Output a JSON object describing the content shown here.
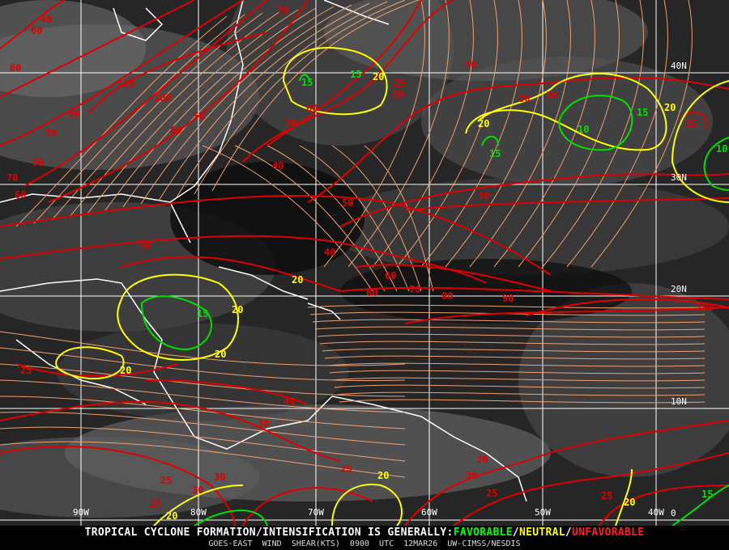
{
  "product": {
    "banner_prefix": "TROPICAL CYCLONE FORMATION/INTENSIFICATION IS GENERALLY:",
    "favorable": "FAVORABLE",
    "sep1": "/",
    "neutral": "NEUTRAL",
    "sep2": "/",
    "unfavorable": "UNFAVORABLE",
    "subtitle": "GOES-EAST WIND SHEAR(KTS)   0900 UTC   12MAR26   UW-CIMSS/NESDIS"
  },
  "colors": {
    "favorable": "#00e000",
    "neutral": "#ffff00",
    "unfavorable": "#e00000",
    "streamlines": "#f0a070",
    "coastlines": "#ffffff",
    "grid": "#ffffff"
  },
  "grid": {
    "longitudes": [
      "90W",
      "80W",
      "70W",
      "60W",
      "50W",
      "40W"
    ],
    "latitudes": [
      "40N",
      "30N",
      "20N",
      "10N",
      "0"
    ]
  },
  "contour_labels": [
    {
      "value": "40",
      "class": "unfavorable"
    },
    {
      "value": "60",
      "class": "unfavorable"
    },
    {
      "value": "60",
      "class": "unfavorable"
    },
    {
      "value": "90",
      "class": "unfavorable"
    },
    {
      "value": "120",
      "class": "unfavorable"
    },
    {
      "value": "100",
      "class": "unfavorable"
    },
    {
      "value": "90",
      "class": "unfavorable"
    },
    {
      "value": "90",
      "class": "unfavorable"
    },
    {
      "value": "70",
      "class": "unfavorable"
    },
    {
      "value": "60",
      "class": "unfavorable"
    },
    {
      "value": "60",
      "class": "unfavorable"
    },
    {
      "value": "50",
      "class": "unfavorable"
    },
    {
      "value": "70",
      "class": "unfavorable"
    },
    {
      "value": "50",
      "class": "unfavorable"
    },
    {
      "value": "60",
      "class": "unfavorable"
    },
    {
      "value": "40",
      "class": "unfavorable"
    },
    {
      "value": "25",
      "class": "unfavorable"
    },
    {
      "value": "30",
      "class": "unfavorable"
    },
    {
      "value": "30",
      "class": "unfavorable"
    },
    {
      "value": "40",
      "class": "unfavorable"
    },
    {
      "value": "50",
      "class": "unfavorable"
    },
    {
      "value": "40",
      "class": "unfavorable"
    },
    {
      "value": "30",
      "class": "unfavorable"
    },
    {
      "value": "30",
      "class": "unfavorable"
    },
    {
      "value": "30",
      "class": "unfavorable"
    },
    {
      "value": "25",
      "class": "unfavorable"
    },
    {
      "value": "60",
      "class": "unfavorable"
    },
    {
      "value": "60",
      "class": "unfavorable"
    },
    {
      "value": "70",
      "class": "unfavorable"
    },
    {
      "value": "80",
      "class": "unfavorable"
    },
    {
      "value": "90",
      "class": "unfavorable"
    },
    {
      "value": "100",
      "class": "unfavorable"
    },
    {
      "value": "25",
      "class": "unfavorable"
    },
    {
      "value": "30",
      "class": "unfavorable"
    },
    {
      "value": "30",
      "class": "unfavorable"
    },
    {
      "value": "30",
      "class": "unfavorable"
    },
    {
      "value": "40",
      "class": "unfavorable"
    },
    {
      "value": "25",
      "class": "unfavorable"
    },
    {
      "value": "25",
      "class": "unfavorable"
    },
    {
      "value": "30",
      "class": "unfavorable"
    },
    {
      "value": "25",
      "class": "unfavorable"
    },
    {
      "value": "30",
      "class": "unfavorable"
    },
    {
      "value": "25",
      "class": "unfavorable"
    },
    {
      "value": "25",
      "class": "unfavorable"
    },
    {
      "value": "20",
      "class": "neutral"
    },
    {
      "value": "20",
      "class": "neutral"
    },
    {
      "value": "20",
      "class": "neutral"
    },
    {
      "value": "20",
      "class": "neutral"
    },
    {
      "value": "20",
      "class": "neutral"
    },
    {
      "value": "20",
      "class": "neutral"
    },
    {
      "value": "20",
      "class": "neutral"
    },
    {
      "value": "20",
      "class": "neutral"
    },
    {
      "value": "20",
      "class": "neutral"
    },
    {
      "value": "20",
      "class": "neutral"
    },
    {
      "value": "15",
      "class": "favorable"
    },
    {
      "value": "15",
      "class": "favorable"
    },
    {
      "value": "15",
      "class": "favorable"
    },
    {
      "value": "10",
      "class": "favorable"
    },
    {
      "value": "15",
      "class": "favorable"
    },
    {
      "value": "10",
      "class": "favorable"
    },
    {
      "value": "15",
      "class": "favorable"
    },
    {
      "value": "15",
      "class": "favorable"
    }
  ]
}
